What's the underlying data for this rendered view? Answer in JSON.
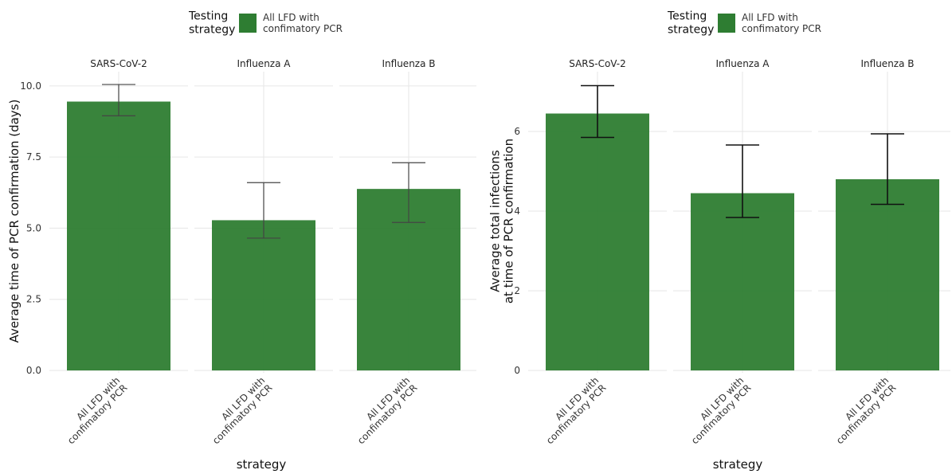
{
  "chart_data": [
    {
      "type": "bar",
      "y_label": "Average time of PCR confirmation (days)",
      "x_label": "strategy",
      "legend_title": "Testing\nstrategy",
      "facets": [
        "SARS-CoV-2",
        "Influenza A",
        "Influenza B"
      ],
      "categories": [
        "All LFD with\nconfimatory PCR",
        "All LFD with\nconfimatory PCR",
        "All LFD with\nconfimatory PCR"
      ],
      "series": [
        {
          "name": "All LFD with\nconfimatory PCR",
          "color": "#2e7d32",
          "values": [
            9.45,
            5.28,
            6.38
          ],
          "lower": [
            8.95,
            4.65,
            5.2
          ],
          "upper": [
            10.05,
            6.6,
            7.3
          ]
        }
      ],
      "ylim": [
        0,
        10.5
      ],
      "yticks": [
        {
          "value": 0,
          "label": "0.0"
        },
        2.5,
        {
          "value": 5,
          "label": "5.0"
        },
        7.5,
        {
          "value": 10,
          "label": "10.0"
        }
      ],
      "grid": true
    },
    {
      "type": "bar",
      "y_label": "Average total infections\nat time of PCR confirmation",
      "x_label": "strategy",
      "legend_title": "Testing\nstrategy",
      "facets": [
        "SARS-CoV-2",
        "Influenza A",
        "Influenza B"
      ],
      "categories": [
        "All LFD with\nconfimatory PCR",
        "All LFD with\nconfimatory PCR",
        "All LFD with\nconfimatory PCR"
      ],
      "series": [
        {
          "name": "All LFD with\nconfimatory PCR",
          "color": "#2e7d32",
          "values": [
            6.45,
            4.45,
            4.8
          ],
          "lower": [
            5.85,
            3.84,
            4.17
          ],
          "upper": [
            7.15,
            5.66,
            5.94
          ]
        }
      ],
      "ylim": [
        0,
        7.5
      ],
      "yticks": [
        0,
        2,
        4,
        6
      ],
      "grid": true
    }
  ]
}
